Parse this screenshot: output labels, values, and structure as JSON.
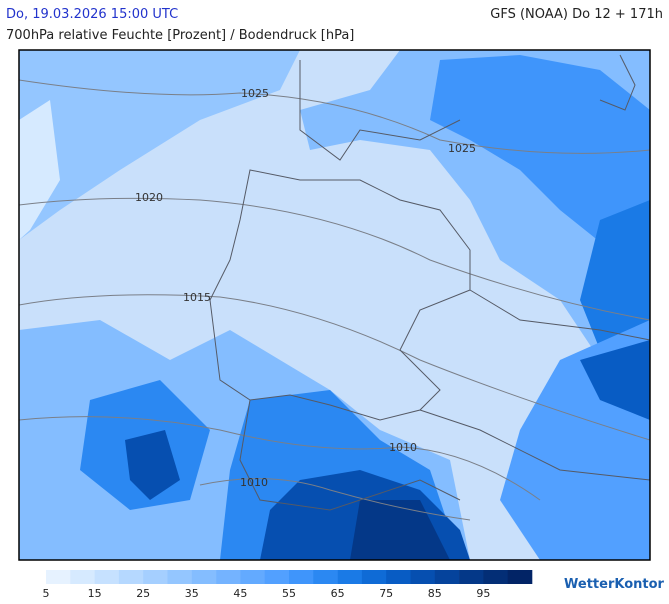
{
  "header": {
    "valid_time": "Do, 19.03.2026 15:00 UTC",
    "model_run": "GFS (NOAA) Do 12 + 171h",
    "subtitle": "700hPa relative Feuchte [Prozent] / Bodendruck [hPa]"
  },
  "isobar_labels": [
    "1025",
    "1025",
    "1020",
    "1015",
    "1010",
    "1010"
  ],
  "legend": {
    "colors": [
      "#e6f2ff",
      "#d6eaff",
      "#c6e1ff",
      "#b5d8ff",
      "#a5cfff",
      "#94c6ff",
      "#84bdff",
      "#74b3ff",
      "#63aaff",
      "#52a0ff",
      "#3f95fb",
      "#2b88f2",
      "#1a7ae6",
      "#0f6bd6",
      "#085cc4",
      "#064fb0",
      "#05439c",
      "#043888",
      "#032e76",
      "#022466"
    ],
    "labels": [
      5,
      15,
      25,
      35,
      45,
      55,
      65,
      75,
      85,
      95
    ]
  },
  "brand": "WetterKontor"
}
